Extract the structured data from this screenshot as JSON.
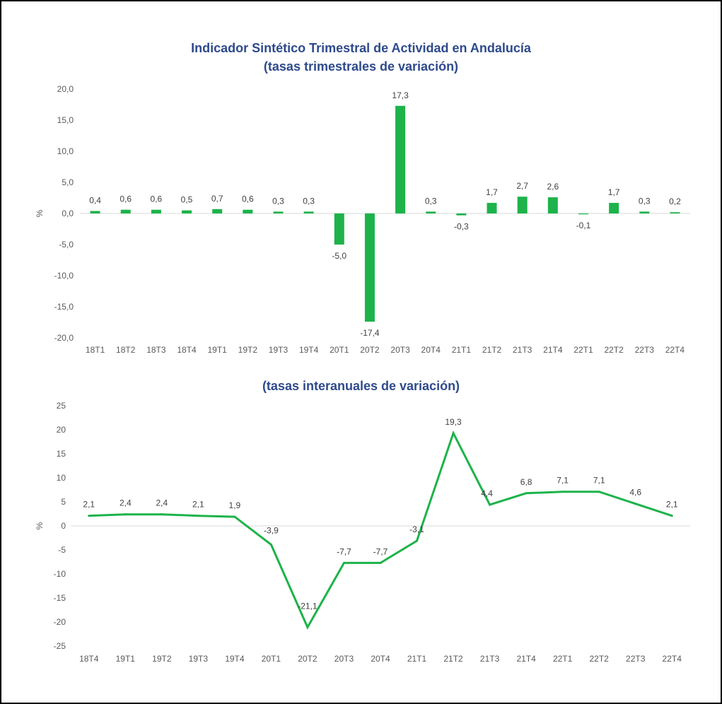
{
  "colors": {
    "series": "#1db34a",
    "title": "#2e4a8c",
    "grid": "#d9d9d9",
    "axis_text": "#595959"
  },
  "chart_data": [
    {
      "type": "bar",
      "title": "Indicador Sintético Trimestral de Actividad en Andalucía",
      "subtitle": "(tasas trimestrales de variación)",
      "ylabel": "%",
      "ylim": [
        -20,
        20
      ],
      "yticks": [
        -20,
        -15,
        -10,
        -5,
        0,
        5,
        10,
        15,
        20
      ],
      "ytick_labels": [
        "-20,0",
        "-15,0",
        "-10,0",
        "-5,0",
        "0,0",
        "5,0",
        "10,0",
        "15,0",
        "20,0"
      ],
      "grid": false,
      "categories": [
        "18T1",
        "18T2",
        "18T3",
        "18T4",
        "19T1",
        "19T2",
        "19T3",
        "19T4",
        "20T1",
        "20T2",
        "20T3",
        "20T4",
        "21T1",
        "21T2",
        "21T3",
        "21T4",
        "22T1",
        "22T2",
        "22T3",
        "22T4"
      ],
      "values": [
        0.4,
        0.6,
        0.6,
        0.5,
        0.7,
        0.6,
        0.3,
        0.3,
        -5.0,
        -17.4,
        17.3,
        0.3,
        -0.3,
        1.7,
        2.7,
        2.6,
        -0.1,
        1.7,
        0.3,
        0.2
      ],
      "labels": [
        "0,4",
        "0,6",
        "0,6",
        "0,5",
        "0,7",
        "0,6",
        "0,3",
        "0,3",
        "-5,0",
        "-17,4",
        "17,3",
        "0,3",
        "-0,3",
        "1,7",
        "2,7",
        "2,6",
        "-0,1",
        "1,7",
        "0,3",
        "0,2"
      ]
    },
    {
      "type": "line",
      "title": "(tasas interanuales de variación)",
      "ylabel": "%",
      "ylim": [
        -25,
        25
      ],
      "yticks": [
        -25,
        -20,
        -15,
        -10,
        -5,
        0,
        5,
        10,
        15,
        20,
        25
      ],
      "ytick_labels": [
        "-25",
        "-20",
        "-15",
        "-10",
        "-5",
        "0",
        "5",
        "10",
        "15",
        "20",
        "25"
      ],
      "grid": false,
      "categories": [
        "18T4",
        "19T1",
        "19T2",
        "19T3",
        "19T4",
        "20T1",
        "20T2",
        "20T3",
        "20T4",
        "21T1",
        "21T2",
        "21T3",
        "21T4",
        "22T1",
        "22T2",
        "22T3",
        "22T4"
      ],
      "values": [
        2.1,
        2.4,
        2.4,
        2.1,
        1.9,
        -3.9,
        -21.1,
        -7.7,
        -7.7,
        -3.1,
        19.3,
        4.4,
        6.8,
        7.1,
        7.1,
        4.6,
        2.1
      ],
      "labels": [
        "2,1",
        "2,4",
        "2,4",
        "2,1",
        "1,9",
        "-3,9",
        "-21,1",
        "-7,7",
        "-7,7",
        "-3,1",
        "19,3",
        "4,4",
        "6,8",
        "7,1",
        "7,1",
        "4,6",
        "2,1"
      ]
    }
  ]
}
